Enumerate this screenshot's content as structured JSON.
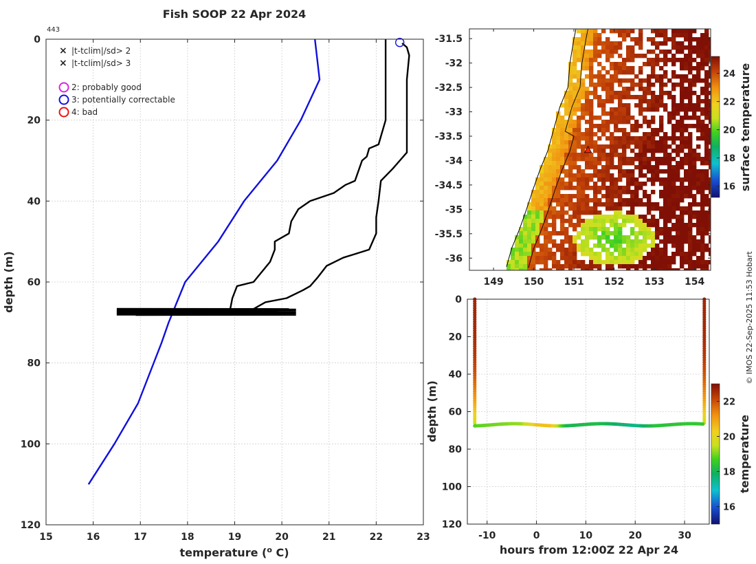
{
  "figure": {
    "title": "Fish SOOP 22 Apr 2024",
    "profile_id": "443",
    "credit": "© IMOS 22-Sep-2025 11:53 Hobart"
  },
  "legend": {
    "items": [
      {
        "marker": "x",
        "color": "#22cc22",
        "label": "|t-tclim|/sd> 2"
      },
      {
        "marker": "x",
        "color": "#ee0000",
        "label": "|t-tclim|/sd> 3"
      },
      {
        "marker": "o",
        "color": "#dd22dd",
        "label": "2: probably good"
      },
      {
        "marker": "o",
        "color": "#1010dd",
        "label": "3: potentially correctable"
      },
      {
        "marker": "o",
        "color": "#ee1111",
        "label": "4: bad"
      }
    ]
  },
  "chart_data": [
    {
      "id": "profile",
      "type": "line",
      "xlabel": "temperature (o C)",
      "ylabel": "depth (m)",
      "xlim": [
        15,
        23
      ],
      "ylim": [
        0,
        120
      ],
      "y_reversed": true,
      "xticks": [
        15,
        16,
        17,
        18,
        19,
        20,
        21,
        22,
        23
      ],
      "yticks": [
        0,
        20,
        40,
        60,
        80,
        100,
        120
      ],
      "series": [
        {
          "name": "climatology",
          "color": "#1010dd",
          "points": [
            [
              20.7,
              0
            ],
            [
              20.75,
              5
            ],
            [
              20.8,
              10
            ],
            [
              20.4,
              20
            ],
            [
              19.9,
              30
            ],
            [
              19.2,
              40
            ],
            [
              18.65,
              50
            ],
            [
              17.95,
              60
            ],
            [
              17.6,
              70
            ],
            [
              17.45,
              75
            ],
            [
              16.95,
              90
            ],
            [
              16.45,
              100
            ],
            [
              15.9,
              110
            ]
          ]
        },
        {
          "name": "profile-lower-bound",
          "color": "#000000",
          "points": [
            [
              22.2,
              0
            ],
            [
              22.2,
              10
            ],
            [
              22.2,
              20
            ],
            [
              22.05,
              26
            ],
            [
              21.85,
              27
            ],
            [
              21.8,
              29
            ],
            [
              21.7,
              30
            ],
            [
              21.55,
              35
            ],
            [
              21.35,
              36
            ],
            [
              21.1,
              38
            ],
            [
              20.6,
              40
            ],
            [
              20.35,
              42
            ],
            [
              20.2,
              45
            ],
            [
              20.15,
              48
            ],
            [
              19.85,
              50
            ],
            [
              19.85,
              52
            ],
            [
              19.75,
              55
            ],
            [
              19.4,
              60
            ],
            [
              19.05,
              61
            ],
            [
              18.95,
              64
            ],
            [
              18.9,
              67
            ]
          ]
        },
        {
          "name": "profile-upper-bound",
          "color": "#000000",
          "points": [
            [
              22.55,
              1
            ],
            [
              22.65,
              2
            ],
            [
              22.7,
              4
            ],
            [
              22.65,
              10
            ],
            [
              22.65,
              20
            ],
            [
              22.65,
              28
            ],
            [
              22.5,
              30
            ],
            [
              22.35,
              32
            ],
            [
              22.1,
              35
            ],
            [
              22.05,
              40
            ],
            [
              22.0,
              44
            ],
            [
              22.0,
              48
            ],
            [
              21.85,
              52
            ],
            [
              21.3,
              54
            ],
            [
              20.95,
              56
            ],
            [
              20.75,
              59
            ],
            [
              20.6,
              61
            ],
            [
              20.45,
              62
            ],
            [
              20.1,
              64
            ],
            [
              19.65,
              65
            ],
            [
              19.35,
              67
            ]
          ]
        }
      ],
      "spike_band": {
        "depth_min": 66.6,
        "depth_max": 68.2,
        "t_min": 16.5,
        "t_max": 20.3
      },
      "flag_marker": {
        "type": "circle",
        "color": "#1010dd",
        "t": 22.5,
        "depth": 0.8
      }
    },
    {
      "id": "sst-map",
      "type": "heatmap",
      "colorbar_label": "surface temperature",
      "xlim": [
        148.4,
        154.4
      ],
      "ylim": [
        -36.25,
        -31.3
      ],
      "xticks": [
        149,
        150,
        151,
        152,
        153,
        154
      ],
      "yticks": [
        -31.5,
        -32,
        -32.5,
        -33,
        -33.5,
        -34,
        -34.5,
        -35,
        -35.5,
        -36
      ],
      "ytick_labels": [
        "-31.5",
        "-32",
        "-32.5",
        "-33",
        "-33.5",
        "-34",
        "-34.5",
        "-35",
        "-35.5",
        "-36"
      ],
      "colorbar_ticks": [
        16,
        18,
        20,
        22,
        24
      ],
      "colorbar_range": [
        15.2,
        25.2
      ],
      "station": {
        "lon": 151.35,
        "lat": -33.78
      }
    },
    {
      "id": "trajectory",
      "type": "scatter",
      "xlabel": "hours from 12:00Z 22 Apr 24",
      "ylabel": "depth (m)",
      "colorbar_label": "temperature",
      "xlim": [
        -14,
        35
      ],
      "ylim": [
        0,
        120
      ],
      "y_reversed": true,
      "xticks": [
        -10,
        0,
        10,
        20,
        30
      ],
      "yticks": [
        0,
        20,
        40,
        60,
        80,
        100,
        120
      ],
      "colorbar_ticks": [
        16,
        18,
        20,
        22
      ],
      "colorbar_range": [
        15,
        23
      ],
      "descent_hours": -12.5,
      "ascent_hours": 34,
      "bottom_depth": 67,
      "surface_temp": 22.6,
      "bottom_temp_segments": [
        [
          -12.5,
          18.8
        ],
        [
          -3,
          19.2
        ],
        [
          0,
          20.5
        ],
        [
          3,
          20.5
        ],
        [
          6,
          18.0
        ],
        [
          12,
          18.2
        ],
        [
          20,
          17.5
        ],
        [
          24,
          18.3
        ],
        [
          34,
          18.5
        ]
      ]
    }
  ]
}
